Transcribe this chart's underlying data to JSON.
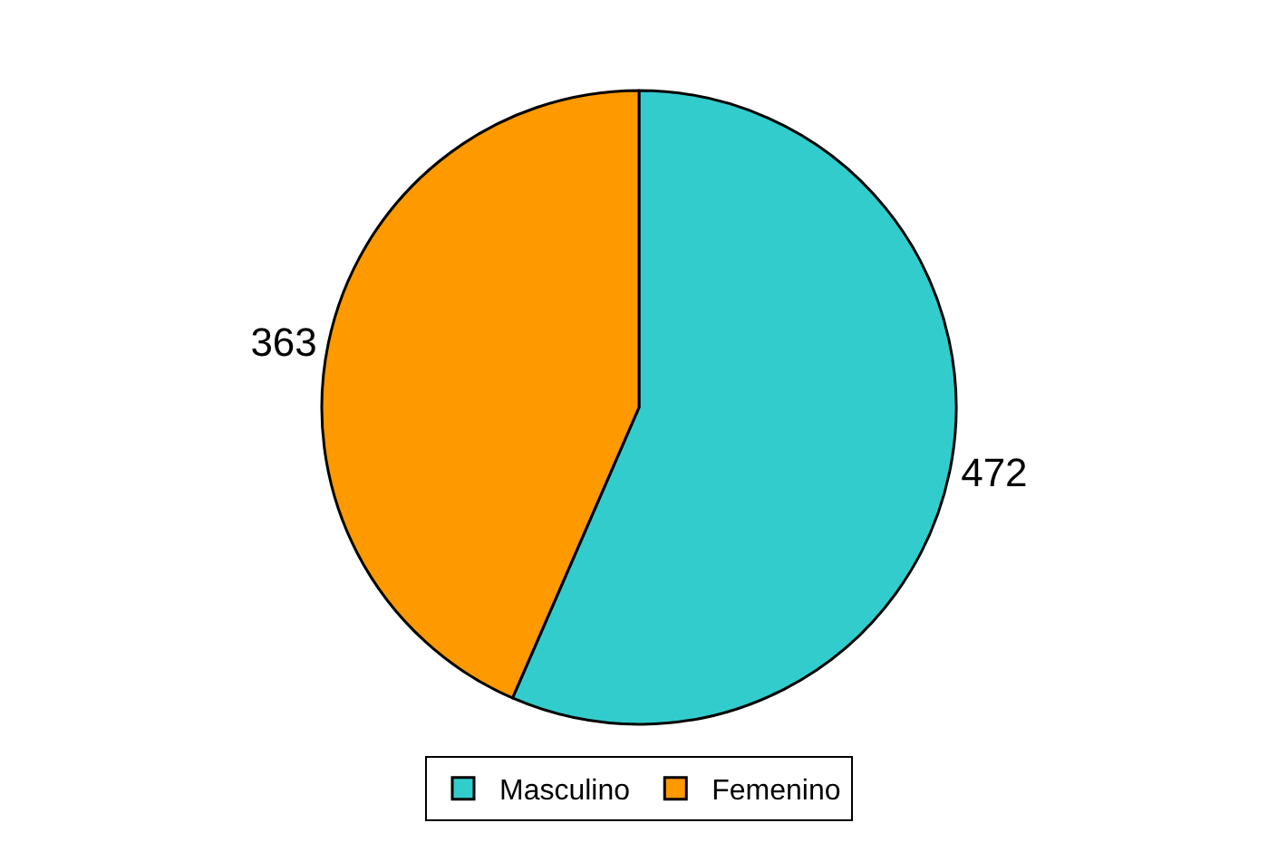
{
  "chart_data": {
    "type": "pie",
    "categories": [
      "Masculino",
      "Femenino"
    ],
    "values": [
      472,
      363
    ],
    "colors": [
      "#33cccc",
      "#ff9900"
    ],
    "data_labels": true,
    "legend": "bottom"
  }
}
